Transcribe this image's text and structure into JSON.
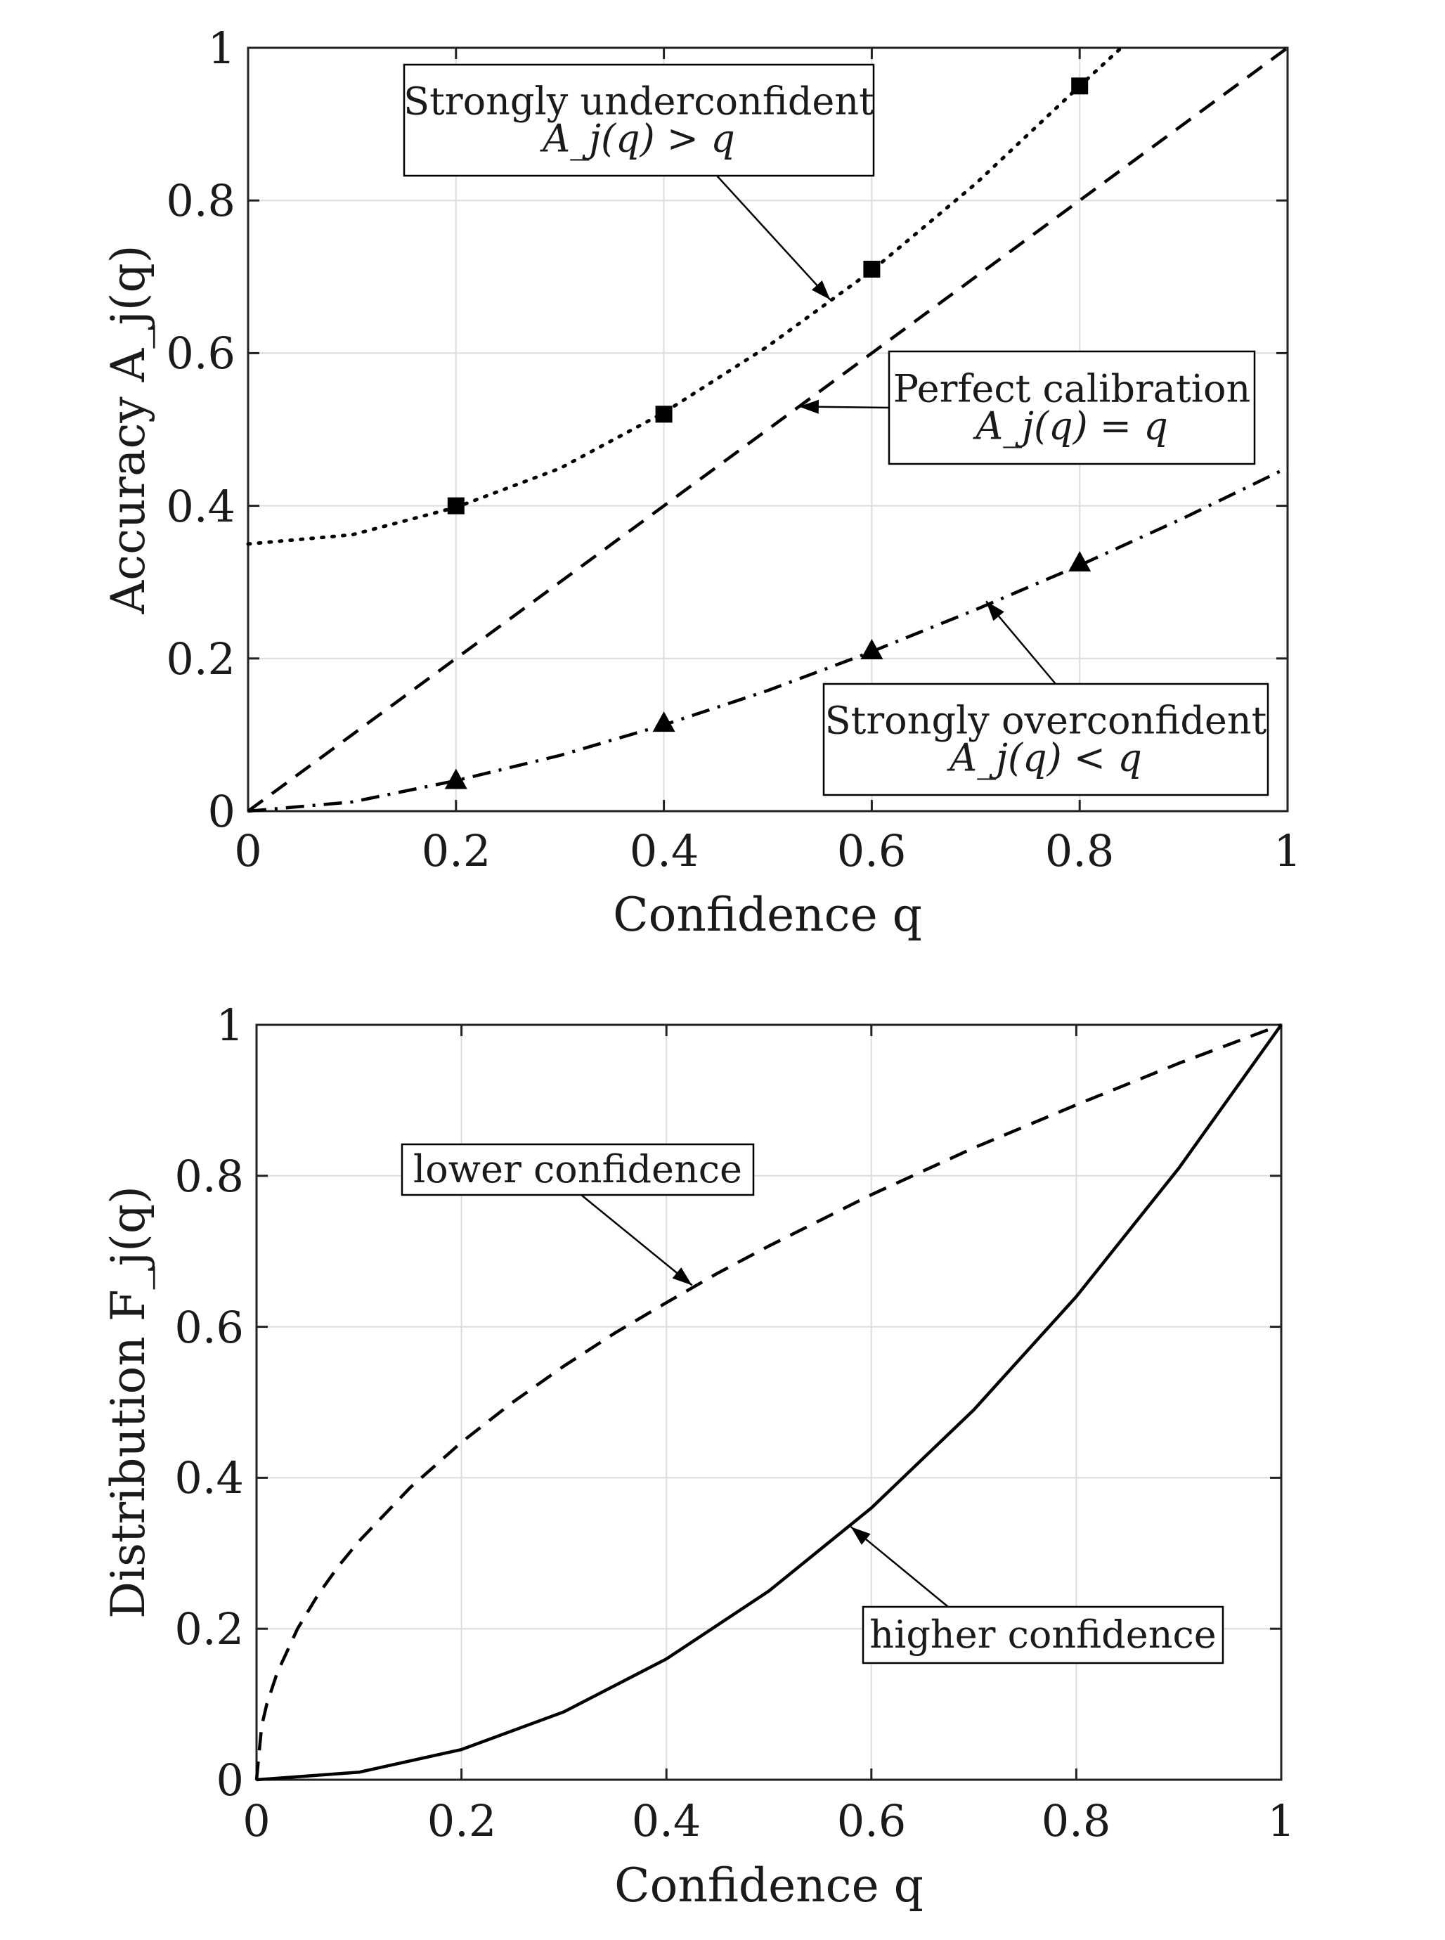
{
  "chart_data": [
    {
      "type": "line",
      "xlabel": "Confidence q",
      "ylabel": "Accuracy A_j(q)",
      "xlim": [
        0,
        1
      ],
      "ylim": [
        0,
        1
      ],
      "xticks": [
        0,
        0.2,
        0.4,
        0.6,
        0.8,
        1
      ],
      "yticks": [
        0,
        0.2,
        0.4,
        0.6,
        0.8,
        1
      ],
      "xtick_labels": [
        "0",
        "0.2",
        "0.4",
        "0.6",
        "0.8",
        "1"
      ],
      "ytick_labels": [
        "0",
        "0.2",
        "0.4",
        "0.6",
        "0.8",
        "1"
      ],
      "grid": true,
      "series": [
        {
          "style": "dotted",
          "marker": "square",
          "x": [
            0,
            0.1,
            0.2,
            0.3,
            0.4,
            0.5,
            0.6,
            0.7,
            0.8,
            0.84
          ],
          "y": [
            0.35,
            0.362,
            0.398,
            0.449,
            0.522,
            0.609,
            0.708,
            0.822,
            0.95,
            1.0
          ],
          "marker_x": [
            0.2,
            0.4,
            0.6,
            0.8
          ],
          "marker_y": [
            0.4,
            0.52,
            0.71,
            0.95
          ]
        },
        {
          "style": "dashed",
          "x": [
            0,
            1
          ],
          "y": [
            0,
            1
          ]
        },
        {
          "style": "dashdot",
          "marker": "triangle",
          "x": [
            0,
            0.1,
            0.2,
            0.3,
            0.4,
            0.5,
            0.6,
            0.7,
            0.8,
            0.9,
            1.0
          ],
          "y": [
            0,
            0.012,
            0.04,
            0.073,
            0.113,
            0.158,
            0.209,
            0.264,
            0.322,
            0.384,
            0.45
          ],
          "marker_x": [
            0.2,
            0.4,
            0.6,
            0.8
          ],
          "marker_y": [
            0.04,
            0.115,
            0.21,
            0.325
          ]
        }
      ],
      "annotations": [
        {
          "lines": [
            "Strongly underconfident",
            "A_j(q) > q"
          ],
          "arrow_to": [
            0.56,
            0.67
          ]
        },
        {
          "lines": [
            "Perfect calibration",
            "A_j(q) = q"
          ],
          "arrow_to": [
            0.53,
            0.53
          ]
        },
        {
          "lines": [
            "Strongly overconfident",
            "A_j(q) < q"
          ],
          "arrow_to": [
            0.71,
            0.275
          ]
        }
      ]
    },
    {
      "type": "line",
      "xlabel": "Confidence q",
      "ylabel": "Distribution F_j(q)",
      "xlim": [
        0,
        1
      ],
      "ylim": [
        0,
        1
      ],
      "xticks": [
        0,
        0.2,
        0.4,
        0.6,
        0.8,
        1
      ],
      "yticks": [
        0,
        0.2,
        0.4,
        0.6,
        0.8,
        1
      ],
      "xtick_labels": [
        "0",
        "0.2",
        "0.4",
        "0.6",
        "0.8",
        "1"
      ],
      "ytick_labels": [
        "0",
        "0.2",
        "0.4",
        "0.6",
        "0.8",
        "1"
      ],
      "grid": true,
      "series": [
        {
          "style": "dashed",
          "x": [
            0,
            0.005,
            0.01,
            0.02,
            0.04,
            0.06,
            0.08,
            0.1,
            0.15,
            0.2,
            0.25,
            0.3,
            0.35,
            0.4,
            0.45,
            0.5,
            0.6,
            0.7,
            0.8,
            0.9,
            1.0
          ],
          "y": [
            0,
            0.071,
            0.1,
            0.141,
            0.2,
            0.245,
            0.283,
            0.316,
            0.387,
            0.447,
            0.5,
            0.548,
            0.592,
            0.632,
            0.671,
            0.707,
            0.775,
            0.837,
            0.894,
            0.949,
            1.0
          ]
        },
        {
          "style": "solid",
          "x": [
            0,
            0.1,
            0.2,
            0.3,
            0.4,
            0.5,
            0.6,
            0.7,
            0.8,
            0.9,
            1.0
          ],
          "y": [
            0,
            0.01,
            0.04,
            0.09,
            0.16,
            0.25,
            0.36,
            0.49,
            0.64,
            0.81,
            1.0
          ]
        }
      ],
      "annotations": [
        {
          "lines": [
            "lower confidence"
          ],
          "arrow_to": [
            0.425,
            0.655
          ]
        },
        {
          "lines": [
            "higher confidence"
          ],
          "arrow_to": [
            0.58,
            0.335
          ]
        }
      ]
    }
  ]
}
